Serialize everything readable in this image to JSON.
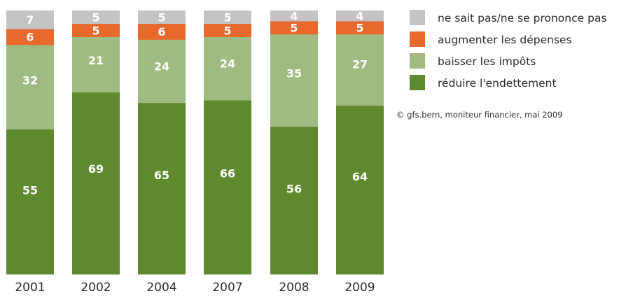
{
  "chart_data": {
    "type": "bar",
    "stacked": true,
    "categories": [
      "2001",
      "2002",
      "2004",
      "2007",
      "2008",
      "2009"
    ],
    "series": [
      {
        "name": "réduire l'endettement",
        "color": "#5e8a2d",
        "values": [
          55,
          69,
          65,
          66,
          56,
          64
        ]
      },
      {
        "name": "baisser les impôts",
        "color": "#a0bb82",
        "values": [
          32,
          21,
          24,
          24,
          35,
          27
        ]
      },
      {
        "name": "augmenter les dépenses",
        "color": "#e8692c",
        "values": [
          6,
          5,
          6,
          5,
          5,
          5
        ]
      },
      {
        "name": "ne sait pas/ne se prononce pas",
        "color": "#c4c4c4",
        "values": [
          7,
          5,
          5,
          5,
          4,
          4
        ]
      }
    ],
    "legend_order": [
      3,
      2,
      1,
      0
    ],
    "legend_position": "top-right",
    "ylim": [
      0,
      100
    ],
    "grid": false,
    "source": "© gfs.bern, moniteur financier, mai 2009"
  }
}
